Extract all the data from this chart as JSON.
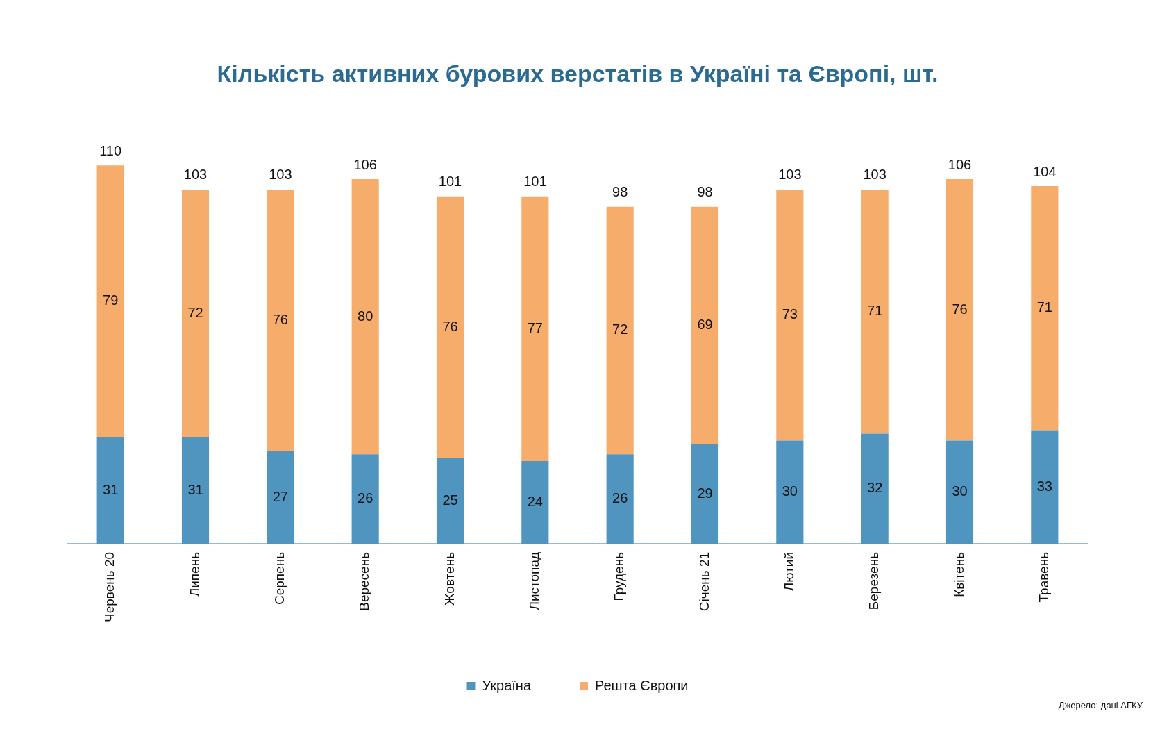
{
  "chart_data": {
    "type": "bar",
    "stacked": true,
    "title": "Кількість активних бурових верстатів в Україні та Європі, шт.",
    "categories": [
      "Червень 20",
      "Липень",
      "Серпень",
      "Вересень",
      "Жовтень",
      "Листопад",
      "Грудень",
      "Січень 21",
      "Лютий",
      "Березень",
      "Квітень",
      "Травень"
    ],
    "series": [
      {
        "name": "Україна",
        "color": "#4f95bf",
        "values": [
          31,
          31,
          27,
          26,
          25,
          24,
          26,
          29,
          30,
          32,
          30,
          33
        ]
      },
      {
        "name": "Решта Європи",
        "color": "#f6ad6c",
        "values": [
          79,
          72,
          76,
          80,
          76,
          77,
          72,
          69,
          73,
          71,
          76,
          71
        ]
      }
    ],
    "totals": [
      "110",
      "103",
      "103",
      "106",
      "101",
      "101",
      "98",
      "98",
      "103",
      "103",
      "106",
      "104"
    ],
    "data_labels": true,
    "legend": "bottom",
    "grid": false,
    "annotations": [
      "Джерело: дані АГКУ"
    ]
  }
}
